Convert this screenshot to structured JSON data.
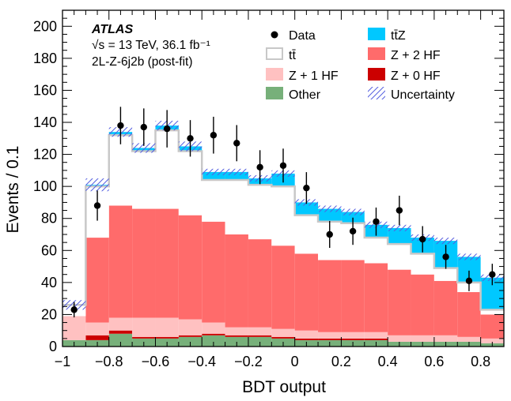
{
  "chart_data": {
    "type": "histogram-stack",
    "title": "",
    "xlabel": "BDT output",
    "ylabel": "Events / 0.1",
    "xlim": [
      -1.0,
      0.9
    ],
    "ylim": [
      0,
      210
    ],
    "xticks": [
      -1,
      -0.8,
      -0.6,
      -0.4,
      -0.2,
      0,
      0.2,
      0.4,
      0.6,
      0.8
    ],
    "xtick_labels": [
      "−1",
      "−0.8",
      "−0.6",
      "−0.4",
      "−0.2",
      "0",
      "0.2",
      "0.4",
      "0.6",
      "0.8"
    ],
    "yticks": [
      0,
      20,
      40,
      60,
      80,
      100,
      120,
      140,
      160,
      180,
      200
    ],
    "ytick_labels": [
      "0",
      "20",
      "40",
      "60",
      "80",
      "100",
      "120",
      "140",
      "160",
      "180",
      "200"
    ],
    "bin_edges": [
      -1.0,
      -0.9,
      -0.8,
      -0.7,
      -0.6,
      -0.5,
      -0.4,
      -0.3,
      -0.2,
      -0.1,
      0.0,
      0.1,
      0.2,
      0.3,
      0.4,
      0.5,
      0.6,
      0.7,
      0.8,
      0.9
    ],
    "stack_order_bottom_to_top": [
      "Other",
      "Z + 0 HF",
      "Z + 1 HF",
      "Z + 2 HF",
      "tt̄",
      "tt̄Z"
    ],
    "series": [
      {
        "name": "Other",
        "color": "#77b07a",
        "values": [
          4,
          4,
          8,
          5,
          5,
          6,
          7,
          6,
          6,
          5,
          4,
          4,
          4,
          4,
          3,
          3,
          3,
          3,
          2
        ]
      },
      {
        "name": "Z + 0 HF",
        "color": "#cc0000",
        "values": [
          0,
          3,
          2,
          1,
          1,
          1,
          1,
          1,
          1,
          1,
          1,
          1,
          1,
          1,
          0,
          0,
          0,
          0,
          0
        ]
      },
      {
        "name": "Z + 1 HF",
        "color": "#ffc1c1",
        "values": [
          15,
          8,
          8,
          12,
          12,
          10,
          7,
          5,
          5,
          5,
          5,
          4,
          4,
          4,
          4,
          4,
          4,
          3,
          3
        ]
      },
      {
        "name": "Z + 2 HF",
        "color": "#ff6b6b",
        "values": [
          0,
          53,
          70,
          68,
          68,
          65,
          63,
          58,
          55,
          52,
          48,
          45,
          45,
          43,
          41,
          38,
          34,
          28,
          15
        ]
      },
      {
        "name": "tt̄",
        "color": "#ffffff",
        "values": [
          7,
          32,
          44,
          36,
          49,
          40,
          26,
          34,
          34,
          37,
          24,
          24,
          23,
          16,
          16,
          13,
          8,
          6,
          3
        ]
      },
      {
        "name": "tt̄Z",
        "color": "#00c8ff",
        "values": [
          0,
          1,
          2,
          2,
          3,
          3,
          5,
          5,
          4,
          8,
          8,
          8,
          7,
          8,
          10,
          10,
          17,
          16,
          20
        ]
      }
    ],
    "data_series": {
      "name": "Data",
      "x": [
        -0.95,
        -0.85,
        -0.75,
        -0.65,
        -0.55,
        -0.45,
        -0.35,
        -0.25,
        -0.15,
        -0.05,
        0.05,
        0.15,
        0.25,
        0.35,
        0.45,
        0.55,
        0.65,
        0.75,
        0.85
      ],
      "y": [
        23,
        88,
        138,
        137,
        136,
        130,
        132,
        127,
        112,
        113,
        99,
        70,
        72,
        78,
        85,
        67,
        56,
        41,
        45
      ],
      "err": [
        4.8,
        9.4,
        11.7,
        11.7,
        11.7,
        11.4,
        11.5,
        11.3,
        10.6,
        10.6,
        9.9,
        8.4,
        8.5,
        8.8,
        9.2,
        8.2,
        7.5,
        6.4,
        6.7
      ]
    },
    "uncertainty": {
      "name": "Uncertainty",
      "values": [
        3,
        4,
        3,
        3,
        3,
        3,
        2,
        2,
        2,
        2,
        2,
        2,
        2,
        2,
        2,
        2,
        2,
        2,
        2
      ]
    },
    "legend": {
      "placement": "top-right",
      "entries": [
        {
          "label": "Data",
          "kind": "marker"
        },
        {
          "label": "tt̄Z",
          "kind": "fill",
          "color": "#00c8ff"
        },
        {
          "label": "tt̄",
          "kind": "outline"
        },
        {
          "label": "Z + 2 HF",
          "kind": "fill",
          "color": "#ff6b6b"
        },
        {
          "label": "Z + 1 HF",
          "kind": "fill",
          "color": "#ffc1c1"
        },
        {
          "label": "Z + 0 HF",
          "kind": "fill",
          "color": "#cc0000"
        },
        {
          "label": "Other",
          "kind": "fill",
          "color": "#77b07a"
        },
        {
          "label": "Uncertainty",
          "kind": "hatch"
        }
      ]
    },
    "annotations": {
      "experiment": "ATLAS",
      "energy_line": "√s = 13 TeV, 36.1 fb⁻¹",
      "region": "2L-Z-6j2b (post-fit)"
    }
  }
}
